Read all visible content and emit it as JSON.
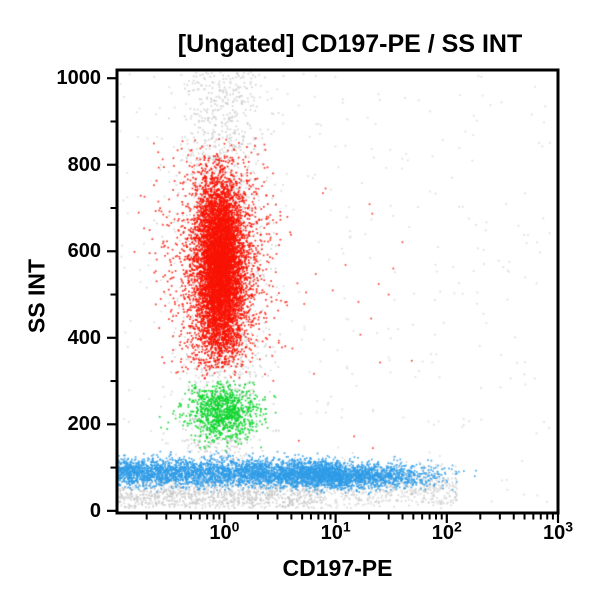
{
  "chart_data": {
    "type": "scatter",
    "title": "[Ungated] CD197-PE / SS INT",
    "xlabel": "CD197-PE",
    "ylabel": "SS INT",
    "frame_color": "#000000",
    "background_color": "#ffffff",
    "x_axis": {
      "scale": "log",
      "log_min": -0.966,
      "log_max": 3,
      "major_ticks": [
        {
          "value": 1,
          "base": "10",
          "exp": "0"
        },
        {
          "value": 10,
          "base": "10",
          "exp": "1"
        },
        {
          "value": 100,
          "base": "10",
          "exp": "2"
        },
        {
          "value": 1000,
          "base": "10",
          "exp": "3"
        }
      ],
      "minor_mantissas": [
        2,
        3,
        4,
        5,
        6,
        7,
        8,
        9
      ],
      "minor_exponents": [
        -1,
        0,
        1,
        2
      ]
    },
    "y_axis": {
      "scale": "linear",
      "min": -5,
      "max": 1019,
      "major_ticks": [
        {
          "value": 0,
          "label": "0"
        },
        {
          "value": 200,
          "label": "200"
        },
        {
          "value": 400,
          "label": "400"
        },
        {
          "value": 600,
          "label": "600"
        },
        {
          "value": 800,
          "label": "800"
        },
        {
          "value": 1000,
          "label": "1000"
        }
      ],
      "minor_ticks": [
        100,
        300,
        500,
        700,
        900
      ]
    },
    "populations": [
      {
        "name": "debris-background-column",
        "color": "#c4c4c4",
        "alpha": 0.7,
        "count": 1700,
        "seed": 11,
        "x": {
          "dist": "lognormal",
          "log_mean": -0.02,
          "log_sd": 0.2,
          "log_clip": [
            -0.95,
            0.55
          ]
        },
        "y": {
          "dist": "uniform",
          "min": 120,
          "max": 1015
        }
      },
      {
        "name": "debris-bottom-left",
        "color": "#c4c4c4",
        "alpha": 0.7,
        "count": 1150,
        "seed": 12,
        "x": {
          "dist": "loguniform",
          "log_min": -0.96,
          "log_max": 0.9
        },
        "y": {
          "dist": "normal",
          "mean": 38,
          "sd": 26,
          "clip": [
            6,
            135
          ]
        }
      },
      {
        "name": "debris-bottom-right",
        "color": "#c6c6c6",
        "alpha": 0.65,
        "count": 500,
        "seed": 13,
        "x": {
          "dist": "loguniform",
          "log_min": 0.9,
          "log_max": 2.1
        },
        "y": {
          "dist": "normal",
          "mean": 52,
          "sd": 28,
          "clip": [
            6,
            125
          ]
        }
      },
      {
        "name": "debris-sparse",
        "color": "#c8c8c8",
        "alpha": 0.6,
        "count": 380,
        "seed": 14,
        "x": {
          "dist": "loguniform",
          "log_min": -0.96,
          "log_max": 2.95
        },
        "y": {
          "dist": "uniform",
          "min": 8,
          "max": 1012
        }
      },
      {
        "name": "granulocytes-halo",
        "color": "#f91405",
        "alpha": 0.85,
        "count": 2100,
        "seed": 21,
        "x": {
          "dist": "lognormal",
          "log_mean": -0.04,
          "log_sd": 0.22,
          "log_clip": [
            -0.95,
            0.6
          ]
        },
        "y": {
          "dist": "normal",
          "mean": 565,
          "sd": 135,
          "clip": [
            305,
            865
          ]
        }
      },
      {
        "name": "granulocytes-core",
        "color": "#f91405",
        "alpha": 0.95,
        "count": 5300,
        "seed": 22,
        "x": {
          "dist": "lognormal",
          "log_mean": -0.04,
          "log_sd": 0.1,
          "log_clip": [
            -0.5,
            0.4
          ]
        },
        "y": {
          "dist": "normal",
          "mean": 565,
          "sd": 100,
          "clip": [
            330,
            820
          ]
        }
      },
      {
        "name": "granulocyte-outliers",
        "color": "#f91405",
        "alpha": 0.8,
        "count": 28,
        "seed": 23,
        "x": {
          "dist": "loguniform",
          "log_min": 0.3,
          "log_max": 1.7
        },
        "y": {
          "dist": "normal",
          "mean": 480,
          "sd": 170,
          "clip": [
            120,
            820
          ]
        }
      },
      {
        "name": "monocytes",
        "color": "#0bd62b",
        "alpha": 0.9,
        "count": 950,
        "seed": 31,
        "x": {
          "dist": "lognormal",
          "log_mean": -0.02,
          "log_sd": 0.16,
          "log_clip": [
            -0.9,
            0.5
          ]
        },
        "y": {
          "dist": "normal",
          "mean": 228,
          "sd": 33,
          "clip": [
            138,
            300
          ]
        }
      },
      {
        "name": "lymphocytes-left",
        "color": "#2f9ce8",
        "alpha": 0.85,
        "count": 3300,
        "seed": 41,
        "x": {
          "dist": "loguniform",
          "log_min": -0.96,
          "log_max": 1.05
        },
        "y": {
          "dist": "normal",
          "mean": 88,
          "sd": 16,
          "clip": [
            42,
            138
          ]
        }
      },
      {
        "name": "lymphocytes-right",
        "color": "#2f9ce8",
        "alpha": 0.85,
        "count": 1700,
        "seed": 42,
        "x": {
          "dist": "lognormal",
          "log_mean": 1.15,
          "log_sd": 0.38,
          "log_clip": [
            0.2,
            2.28
          ]
        },
        "y": {
          "dist": "normal",
          "mean": 80,
          "sd": 15,
          "clip": [
            38,
            128
          ]
        }
      }
    ]
  }
}
